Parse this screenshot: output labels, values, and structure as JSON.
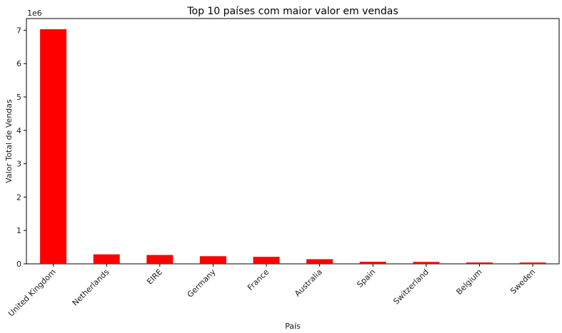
{
  "chart_data": {
    "type": "bar",
    "title": "Top 10 países com maior valor em vendas",
    "xlabel": "País",
    "ylabel": "Valor Total de Vendas",
    "y_offset_label": "1e6",
    "categories": [
      "United Kingdom",
      "Netherlands",
      "EIRE",
      "Germany",
      "France",
      "Australia",
      "Spain",
      "Switzerland",
      "Belgium",
      "Sweden"
    ],
    "values": [
      7030000,
      285000,
      265000,
      228000,
      209000,
      138000,
      61500,
      57000,
      41200,
      38400
    ],
    "ylim": [
      0,
      7350000
    ],
    "yticks": [
      0,
      1,
      2,
      3,
      4,
      5,
      6,
      7
    ],
    "ytick_multiplier": 1000000,
    "bar_color": "#ff0000",
    "grid": false,
    "legend": "none"
  }
}
